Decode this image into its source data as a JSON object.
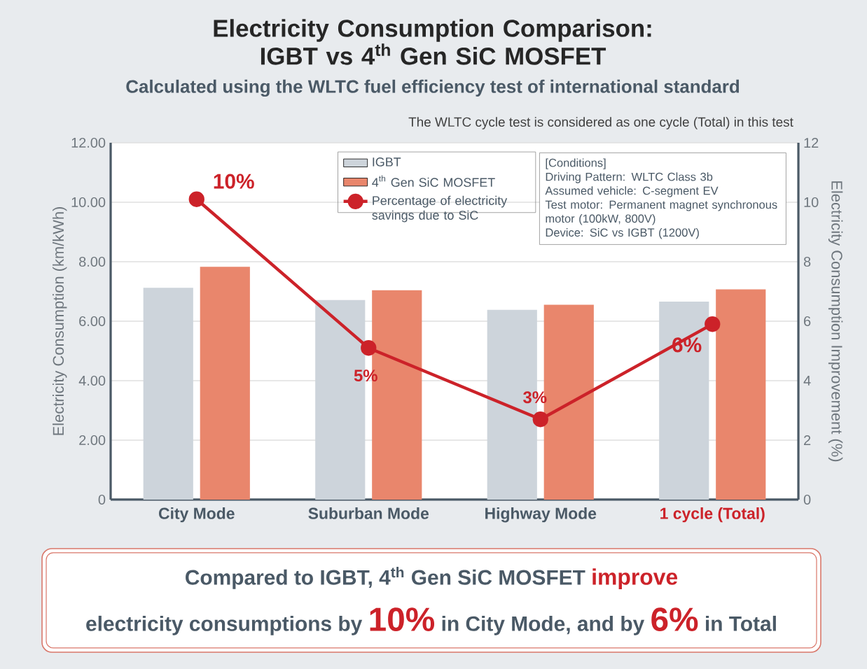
{
  "chart_data": {
    "type": "bar",
    "title": "Electricity Consumption Comparison: IGBT vs 4$^{th}$ Gen SiC MOSFET",
    "subtitle": "Calculated using the WLTC fuel efficiency test of international standard",
    "ylabel": "Electricity Consumption (km/kWh)",
    "y2label": "Electricity Consumption Improvement (%)",
    "categories": [
      "City Mode",
      "Suburban Mode",
      "Highway Mode",
      "1 cycle (Total)"
    ],
    "series": [
      {
        "name": "IGBT",
        "color": "#cdd4db",
        "values": [
          7.12,
          6.71,
          6.38,
          6.66
        ]
      },
      {
        "name": "4$^{th}$ Gen SiC MOSFET",
        "color": "#e9866c",
        "values": [
          7.83,
          7.04,
          6.55,
          7.07
        ]
      },
      {
        "name": "Percentage of electricity savings due to SiC",
        "type": "line",
        "axis": "y2",
        "color": "#cc2229",
        "values": [
          10.1,
          5.1,
          2.7,
          5.9
        ],
        "value_labels": [
          "10%",
          "5%",
          "3%",
          "6%"
        ]
      }
    ],
    "ylim": [
      0,
      12
    ],
    "yticks": [
      {
        "value": 0,
        "label": "0"
      },
      {
        "value": 2,
        "label": "2.00"
      },
      {
        "value": 4,
        "label": "4.00"
      },
      {
        "value": 6,
        "label": "6.00"
      },
      {
        "value": 8,
        "label": "8.00"
      },
      {
        "value": 10,
        "label": "10.00"
      },
      {
        "value": 12,
        "label": "12.00"
      }
    ],
    "y2lim": [
      0,
      12
    ],
    "y2ticks": [
      0,
      2,
      4,
      6,
      8,
      10,
      12
    ],
    "grid": "y",
    "legend": "top",
    "marker": "circle",
    "annotations": [
      "The WLTC cycle test is considered as one cycle (Total) in this test",
      "[Conditions]",
      "Driving Pattern: WLTC Class 3b",
      "Assumed vehicle: C-segment EV",
      "Test motor: Permanent magnet synchronous motor (100kW, 800V)",
      "Device: SiC vs IGBT (1200V)",
      "Compared to IGBT, 4$^{th}$ Gen SiC MOSFET",
      "improve",
      "electricity consumptions by",
      "10%",
      "in City Mode, and by",
      "6%",
      "in Total"
    ]
  }
}
